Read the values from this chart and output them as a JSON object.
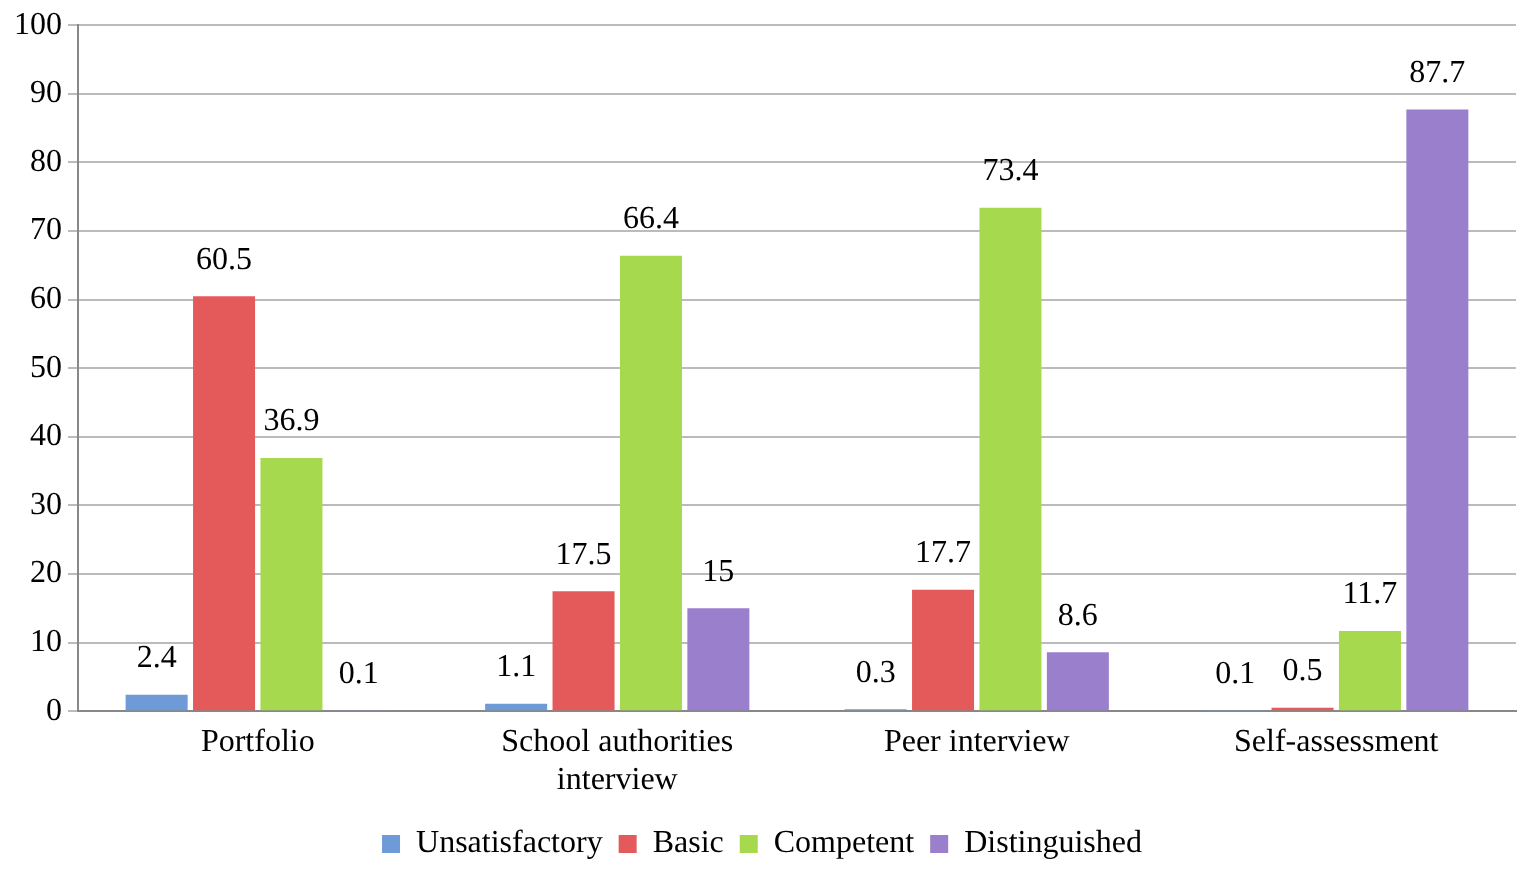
{
  "chart_data": {
    "type": "bar",
    "categories": [
      "Portfolio",
      "School authorities\ninterview",
      "Peer interview",
      "Self-assessment"
    ],
    "series": [
      {
        "name": "Unsatisfactory",
        "color": "#6f9ad8",
        "values": [
          2.4,
          1.1,
          0.3,
          0.1
        ]
      },
      {
        "name": "Basic",
        "color": "#e45a5a",
        "values": [
          60.5,
          17.5,
          17.7,
          0.5
        ]
      },
      {
        "name": "Competent",
        "color": "#a6d94e",
        "values": [
          36.9,
          66.4,
          73.4,
          11.7
        ]
      },
      {
        "name": "Distinguished",
        "color": "#9a7fcc",
        "values": [
          0.1,
          15,
          8.6,
          87.7
        ]
      }
    ],
    "ylim": [
      0,
      100
    ],
    "yticks": [
      0,
      10,
      20,
      30,
      40,
      50,
      60,
      70,
      80,
      90,
      100
    ],
    "grid": "y",
    "legend": "bottom",
    "data_labels": true
  }
}
